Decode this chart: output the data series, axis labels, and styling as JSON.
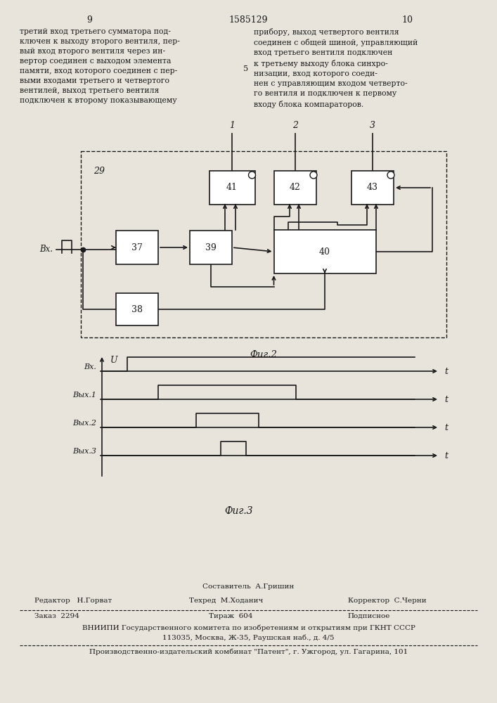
{
  "bg_color": "#e8e4dc",
  "line_color": "#1a1a1a",
  "text_color": "#1a1a1a",
  "page_header": [
    "9",
    "1585129",
    "10"
  ],
  "text_left": "третий вход третьего сумматора под-\nключен к выходу второго вентиля, пер-\nвый вход второго вентиля через ин-\nвертор соединен с выходом элемента\nпамяти, вход которого соединен с пер-\nвыми входами третьего и четвертого\nвентилей, выход третьего вентиля\nподключен к второму показывающему",
  "text_right": "прибору, выход четвертого вентиля\nсоединен с общей шиной, управляющий\nвход третьего вентиля подключен\nк третьему выходу блока синхро-\nнизации, вход которого соеди-\nнен с управляющим входом четверто-\nго вентиля и подключен к первому\nвходу блока компараторов.",
  "margin_num": "5",
  "fig2_label": "Фиг.2",
  "fig3_label": "Фиг.3",
  "footer": {
    "line1": "Составитель  А.Гришин",
    "line2_left": "Редактор   Н.Горват",
    "line2_mid": "Техред  М.Хoданич",
    "line2_right": "Корректор  С.Черни",
    "line3_left": "Заказ  2294",
    "line3_mid": "Тираж  604",
    "line3_right": "Подписное",
    "line4": "ВНИИПИ Государственного комитета по изобретениям и открытиям при ГКНТ СССР",
    "line5": "113035, Москва, Ж-35, Раушская наб., д. 4/5",
    "line6": "Производственно-издательский комбинат \"Патент\", г. Ужгород, ул. Гагарина, 101"
  }
}
